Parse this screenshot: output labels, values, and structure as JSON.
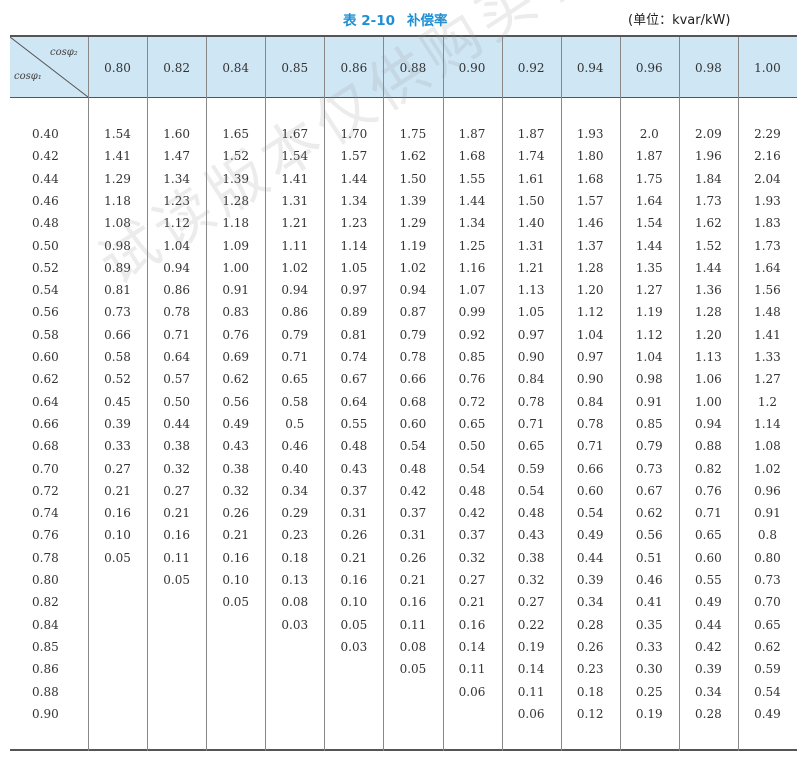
{
  "caption": {
    "table_no": "表 2-10",
    "title": "补偿率",
    "unit": "(单位：kvar/kW)"
  },
  "watermark": "试读版本仅供购买者阅读使用",
  "corner": {
    "top": "cosφ₂",
    "bottom": "cosφ₁"
  },
  "columns": [
    "0.80",
    "0.82",
    "0.84",
    "0.85",
    "0.86",
    "0.88",
    "0.90",
    "0.92",
    "0.94",
    "0.96",
    "0.98",
    "1.00"
  ],
  "rows": [
    {
      "label": "0.40",
      "values": [
        "1.54",
        "1.60",
        "1.65",
        "1.67",
        "1.70",
        "1.75",
        "1.87",
        "1.87",
        "1.93",
        "2.0",
        "2.09",
        "2.29"
      ]
    },
    {
      "label": "0.42",
      "values": [
        "1.41",
        "1.47",
        "1.52",
        "1.54",
        "1.57",
        "1.62",
        "1.68",
        "1.74",
        "1.80",
        "1.87",
        "1.96",
        "2.16"
      ]
    },
    {
      "label": "0.44",
      "values": [
        "1.29",
        "1.34",
        "1.39",
        "1.41",
        "1.44",
        "1.50",
        "1.55",
        "1.61",
        "1.68",
        "1.75",
        "1.84",
        "2.04"
      ]
    },
    {
      "label": "0.46",
      "values": [
        "1.18",
        "1.23",
        "1.28",
        "1.31",
        "1.34",
        "1.39",
        "1.44",
        "1.50",
        "1.57",
        "1.64",
        "1.73",
        "1.93"
      ]
    },
    {
      "label": "0.48",
      "values": [
        "1.08",
        "1.12",
        "1.18",
        "1.21",
        "1.23",
        "1.29",
        "1.34",
        "1.40",
        "1.46",
        "1.54",
        "1.62",
        "1.83"
      ]
    },
    {
      "label": "0.50",
      "values": [
        "0.98",
        "1.04",
        "1.09",
        "1.11",
        "1.14",
        "1.19",
        "1.25",
        "1.31",
        "1.37",
        "1.44",
        "1.52",
        "1.73"
      ]
    },
    {
      "label": "0.52",
      "values": [
        "0.89",
        "0.94",
        "1.00",
        "1.02",
        "1.05",
        "1.02",
        "1.16",
        "1.21",
        "1.28",
        "1.35",
        "1.44",
        "1.64"
      ]
    },
    {
      "label": "0.54",
      "values": [
        "0.81",
        "0.86",
        "0.91",
        "0.94",
        "0.97",
        "0.94",
        "1.07",
        "1.13",
        "1.20",
        "1.27",
        "1.36",
        "1.56"
      ]
    },
    {
      "label": "0.56",
      "values": [
        "0.73",
        "0.78",
        "0.83",
        "0.86",
        "0.89",
        "0.87",
        "0.99",
        "1.05",
        "1.12",
        "1.19",
        "1.28",
        "1.48"
      ]
    },
    {
      "label": "0.58",
      "values": [
        "0.66",
        "0.71",
        "0.76",
        "0.79",
        "0.81",
        "0.79",
        "0.92",
        "0.97",
        "1.04",
        "1.12",
        "1.20",
        "1.41"
      ]
    },
    {
      "label": "0.60",
      "values": [
        "0.58",
        "0.64",
        "0.69",
        "0.71",
        "0.74",
        "0.78",
        "0.85",
        "0.90",
        "0.97",
        "1.04",
        "1.13",
        "1.33"
      ]
    },
    {
      "label": "0.62",
      "values": [
        "0.52",
        "0.57",
        "0.62",
        "0.65",
        "0.67",
        "0.66",
        "0.76",
        "0.84",
        "0.90",
        "0.98",
        "1.06",
        "1.27"
      ]
    },
    {
      "label": "0.64",
      "values": [
        "0.45",
        "0.50",
        "0.56",
        "0.58",
        "0.64",
        "0.68",
        "0.72",
        "0.78",
        "0.84",
        "0.91",
        "1.00",
        "1.2"
      ]
    },
    {
      "label": "0.66",
      "values": [
        "0.39",
        "0.44",
        "0.49",
        "0.5",
        "0.55",
        "0.60",
        "0.65",
        "0.71",
        "0.78",
        "0.85",
        "0.94",
        "1.14"
      ]
    },
    {
      "label": "0.68",
      "values": [
        "0.33",
        "0.38",
        "0.43",
        "0.46",
        "0.48",
        "0.54",
        "0.50",
        "0.65",
        "0.71",
        "0.79",
        "0.88",
        "1.08"
      ]
    },
    {
      "label": "0.70",
      "values": [
        "0.27",
        "0.32",
        "0.38",
        "0.40",
        "0.43",
        "0.48",
        "0.54",
        "0.59",
        "0.66",
        "0.73",
        "0.82",
        "1.02"
      ]
    },
    {
      "label": "0.72",
      "values": [
        "0.21",
        "0.27",
        "0.32",
        "0.34",
        "0.37",
        "0.42",
        "0.48",
        "0.54",
        "0.60",
        "0.67",
        "0.76",
        "0.96"
      ]
    },
    {
      "label": "0.74",
      "values": [
        "0.16",
        "0.21",
        "0.26",
        "0.29",
        "0.31",
        "0.37",
        "0.42",
        "0.48",
        "0.54",
        "0.62",
        "0.71",
        "0.91"
      ]
    },
    {
      "label": "0.76",
      "values": [
        "0.10",
        "0.16",
        "0.21",
        "0.23",
        "0.26",
        "0.31",
        "0.37",
        "0.43",
        "0.49",
        "0.56",
        "0.65",
        "0.8"
      ]
    },
    {
      "label": "0.78",
      "values": [
        "0.05",
        "0.11",
        "0.16",
        "0.18",
        "0.21",
        "0.26",
        "0.32",
        "0.38",
        "0.44",
        "0.51",
        "0.60",
        "0.80"
      ]
    },
    {
      "label": "0.80",
      "values": [
        "",
        "0.05",
        "0.10",
        "0.13",
        "0.16",
        "0.21",
        "0.27",
        "0.32",
        "0.39",
        "0.46",
        "0.55",
        "0.73"
      ]
    },
    {
      "label": "0.82",
      "values": [
        "",
        "",
        "0.05",
        "0.08",
        "0.10",
        "0.16",
        "0.21",
        "0.27",
        "0.34",
        "0.41",
        "0.49",
        "0.70"
      ]
    },
    {
      "label": "0.84",
      "values": [
        "",
        "",
        "",
        "0.03",
        "0.05",
        "0.11",
        "0.16",
        "0.22",
        "0.28",
        "0.35",
        "0.44",
        "0.65"
      ]
    },
    {
      "label": "0.85",
      "values": [
        "",
        "",
        "",
        "",
        "0.03",
        "0.08",
        "0.14",
        "0.19",
        "0.26",
        "0.33",
        "0.42",
        "0.62"
      ]
    },
    {
      "label": "0.86",
      "values": [
        "",
        "",
        "",
        "",
        "",
        "0.05",
        "0.11",
        "0.14",
        "0.23",
        "0.30",
        "0.39",
        "0.59"
      ]
    },
    {
      "label": "0.88",
      "values": [
        "",
        "",
        "",
        "",
        "",
        "",
        "0.06",
        "0.11",
        "0.18",
        "0.25",
        "0.34",
        "0.54"
      ]
    },
    {
      "label": "0.90",
      "values": [
        "",
        "",
        "",
        "",
        "",
        "",
        "",
        "0.06",
        "0.12",
        "0.19",
        "0.28",
        "0.49"
      ]
    }
  ]
}
